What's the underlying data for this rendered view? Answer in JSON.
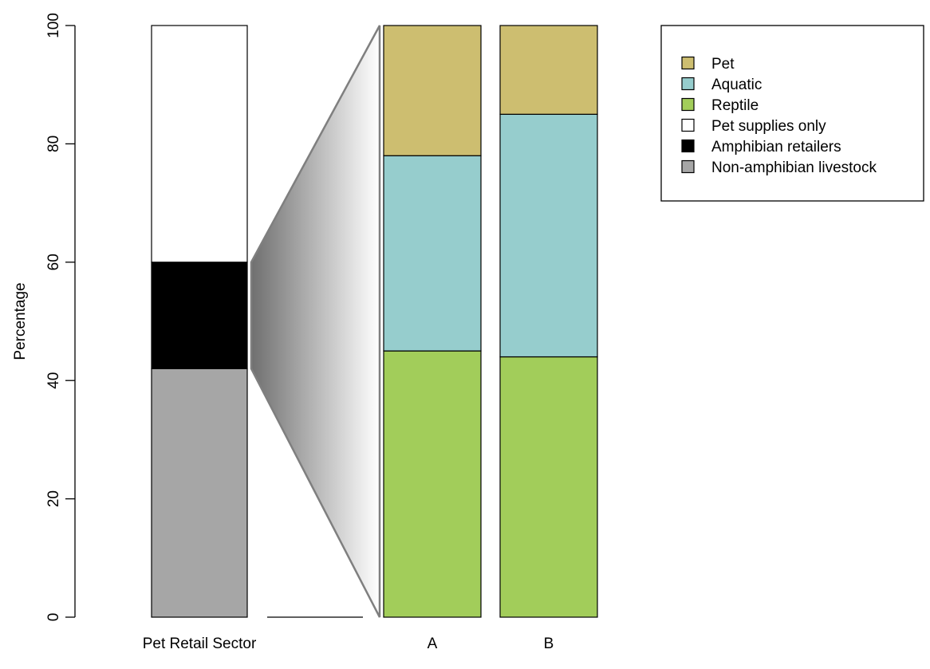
{
  "chart_data": {
    "type": "bar",
    "subtype": "stacked-bar-of-bar",
    "title": "",
    "xlabel": "",
    "ylabel": "Percentage",
    "ylim": [
      0,
      100
    ],
    "yticks": [
      0,
      20,
      40,
      60,
      80,
      100
    ],
    "grid": false,
    "legend_position": "top-right",
    "categories": [
      "Pet Retail Sector",
      "A",
      "B"
    ],
    "series": [
      {
        "name": "Non-amphibian livestock",
        "color": "#a6a6a6",
        "values": [
          42,
          null,
          null
        ]
      },
      {
        "name": "Amphibian retailers",
        "color": "#000000",
        "values": [
          18,
          null,
          null
        ]
      },
      {
        "name": "Pet supplies only",
        "color": "#ffffff",
        "values": [
          40,
          null,
          null
        ]
      },
      {
        "name": "Reptile",
        "color": "#a2cd5a",
        "values": [
          null,
          45,
          44
        ]
      },
      {
        "name": "Aquatic",
        "color": "#96cdcd",
        "values": [
          null,
          33,
          41
        ]
      },
      {
        "name": "Pet",
        "color": "#cdbe70",
        "values": [
          null,
          22,
          15
        ]
      }
    ],
    "legend_order": [
      "Pet",
      "Aquatic",
      "Reptile",
      "Pet supplies only",
      "Amphibian retailers",
      "Non-amphibian livestock"
    ],
    "zoom_connector": {
      "from_category": "Pet Retail Sector",
      "from_range": [
        42,
        60
      ],
      "to_categories": [
        "A",
        "B"
      ]
    }
  }
}
